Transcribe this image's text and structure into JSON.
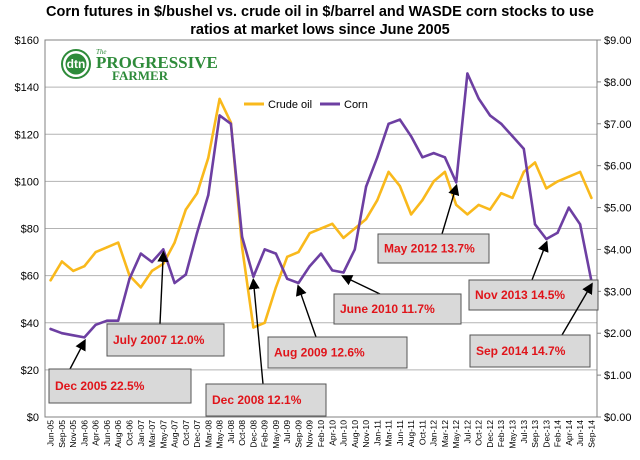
{
  "chart_data": {
    "type": "line",
    "title_lines": [
      "Corn futures in $/bushel vs. crude oil in $/barrel and WASDE corn stocks to use",
      "ratios at market lows since June 2005"
    ],
    "y_left": {
      "ticks": [
        "$0",
        "$20",
        "$40",
        "$60",
        "$80",
        "$100",
        "$120",
        "$140",
        "$160"
      ],
      "range": [
        0,
        160
      ]
    },
    "y_right": {
      "ticks": [
        "$0.00",
        "$1.00",
        "$2.00",
        "$3.00",
        "$4.00",
        "$5.00",
        "$6.00",
        "$7.00",
        "$8.00",
        "$9.00"
      ],
      "range": [
        0,
        9
      ]
    },
    "x_labels": [
      "Jun-05",
      "Sep-05",
      "Nov-05",
      "Jan-06",
      "Apr-06",
      "Jun-06",
      "Aug-06",
      "Oct-06",
      "Jan-07",
      "Mar-07",
      "May-07",
      "Aug-07",
      "Oct-07",
      "Dec-07",
      "Mar-08",
      "May-08",
      "Jul-08",
      "Oct-08",
      "Dec-08",
      "Feb-09",
      "May-09",
      "Jul-09",
      "Sep-09",
      "Nov-09",
      "Feb-10",
      "Apr-10",
      "Jun-10",
      "Aug-10",
      "Nov-10",
      "Jan-11",
      "Mar-11",
      "Jun-11",
      "Aug-11",
      "Oct-11",
      "Jan-12",
      "Mar-12",
      "May-12",
      "Jul-12",
      "Oct-12",
      "Dec-12",
      "Feb-13",
      "May-13",
      "Jul-13",
      "Sep-13",
      "Dec-13",
      "Feb-14",
      "Apr-14",
      "Jun-14",
      "Sep-14"
    ],
    "grid": true,
    "legend_position": "upper-middle",
    "series": [
      {
        "name": "Crude oil",
        "axis": "left",
        "color": "#f9b91c",
        "values": [
          58,
          66,
          62,
          64,
          70,
          72,
          74,
          60,
          55,
          62,
          65,
          74,
          88,
          95,
          110,
          135,
          125,
          72,
          38,
          40,
          55,
          68,
          70,
          78,
          80,
          82,
          76,
          80,
          84,
          92,
          104,
          98,
          86,
          92,
          100,
          104,
          90,
          86,
          90,
          88,
          95,
          93,
          104,
          108,
          97,
          100,
          102,
          104,
          93
        ]
      },
      {
        "name": "Corn",
        "axis": "right",
        "color": "#6d3fa2",
        "values": [
          2.1,
          2.0,
          1.95,
          1.9,
          2.2,
          2.3,
          2.3,
          3.3,
          3.9,
          3.7,
          4.0,
          3.2,
          3.4,
          4.4,
          5.3,
          7.2,
          7.0,
          4.3,
          3.35,
          4.0,
          3.9,
          3.3,
          3.2,
          3.6,
          3.9,
          3.5,
          3.45,
          4.0,
          5.5,
          6.2,
          7.0,
          7.1,
          6.7,
          6.2,
          6.3,
          6.2,
          5.6,
          8.2,
          7.6,
          7.2,
          7.0,
          6.7,
          6.4,
          4.6,
          4.25,
          4.4,
          5.0,
          4.6,
          3.25
        ]
      }
    ],
    "legend": [
      "Crude oil",
      "Corn"
    ],
    "annotations": [
      "Dec 2005  22.5%",
      "July 2007 12.0%",
      "Dec 2008  12.1%",
      "Aug 2009  12.6%",
      "June 2010   11.7%",
      "May 2012  13.7%",
      "Nov 2013  14.5%",
      "Sep 2014  14.7%"
    ]
  },
  "logo": {
    "mark": "dtn",
    "the": "The",
    "line1": "PROGRESSIVE",
    "line2": "FARMER"
  },
  "colors": {
    "crude": "#f9b91c",
    "corn": "#6d3fa2",
    "annotation_text": "#e0141a",
    "annotation_bg": "#d9d9d9",
    "logo": "#2e8b3a"
  }
}
